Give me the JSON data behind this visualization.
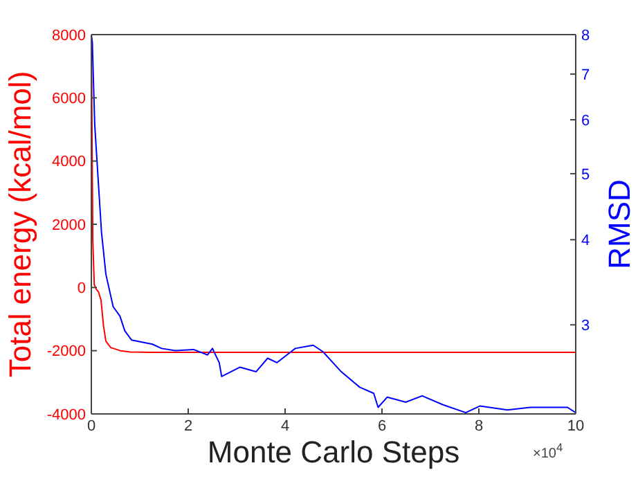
{
  "chart_data": {
    "type": "line",
    "xlabel": "Monte Carlo Steps",
    "ylabel": "Total energy (kcal/mol)",
    "y2label": "RMSD",
    "annotations": [
      "×10$^{4}$"
    ],
    "series": [
      {
        "color": "#ff0000",
        "x": [
          0,
          0.03,
          0.06,
          0.1,
          0.15,
          0.2,
          0.25,
          0.3,
          0.4,
          0.6,
          0.8,
          1.2,
          2,
          10
        ],
        "values": [
          8000,
          1500,
          100,
          -50,
          -150,
          -400,
          -1200,
          -1700,
          -1900,
          -2000,
          -2040,
          -2050,
          -2050,
          -2050
        ]
      },
      {
        "color": "#0000ff",
        "axis": "y2",
        "x": [
          0,
          0.02,
          0.07,
          0.13,
          0.21,
          0.3,
          0.45,
          0.59,
          0.69,
          0.83,
          1.26,
          1.45,
          1.73,
          2.11,
          2.4,
          2.5,
          2.64,
          2.69,
          3.07,
          3.4,
          3.64,
          3.83,
          4.21,
          4.58,
          4.78,
          5.16,
          5.54,
          5.83,
          5.92,
          6.11,
          6.49,
          6.83,
          7.26,
          7.73,
          8.02,
          8.59,
          9.07,
          9.83,
          10
        ],
        "values": [
          8,
          7.8,
          5.9,
          5.04,
          4.1,
          3.56,
          3.19,
          3.09,
          2.94,
          2.85,
          2.81,
          2.77,
          2.75,
          2.76,
          2.71,
          2.77,
          2.64,
          2.52,
          2.6,
          2.56,
          2.68,
          2.64,
          2.77,
          2.8,
          2.74,
          2.56,
          2.43,
          2.38,
          2.27,
          2.35,
          2.31,
          2.36,
          2.29,
          2.23,
          2.28,
          2.25,
          2.27,
          2.27,
          2.23
        ]
      }
    ],
    "xlim": [
      0,
      10
    ],
    "xticks": [
      0,
      2,
      4,
      6,
      8,
      10
    ],
    "ylim": [
      -4000,
      8000
    ],
    "yticks": [
      -4000,
      -2000,
      0,
      2000,
      4000,
      6000,
      8000
    ],
    "y2lim": [
      2.22,
      8
    ],
    "y2ticks": [
      3,
      4,
      5,
      6,
      7,
      8
    ],
    "log": "y2",
    "grid": false,
    "marker": "none",
    "line_style": "solid"
  }
}
